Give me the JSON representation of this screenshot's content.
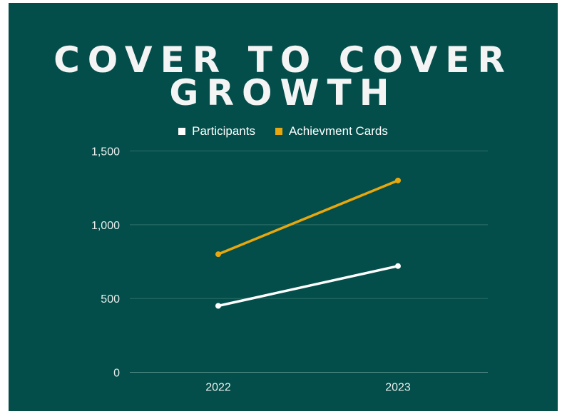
{
  "chart_data": {
    "type": "line",
    "title": "COVER TO COVER GROWTH",
    "title_lines": [
      "COVER TO COVER",
      "GROWTH"
    ],
    "categories": [
      "2022",
      "2023"
    ],
    "series": [
      {
        "name": "Participants",
        "values": [
          450,
          720
        ],
        "color": "#ffffff"
      },
      {
        "name": "Achievment Cards",
        "values": [
          800,
          1300
        ],
        "color": "#e8a70c"
      }
    ],
    "ylim": [
      0,
      1500
    ],
    "y_ticks": [
      0,
      500,
      1000,
      1500
    ],
    "y_tick_labels": [
      "0",
      "500",
      "1,000",
      "1,500"
    ],
    "grid": true,
    "legend_position": "top-center",
    "xlabel": "",
    "ylabel": ""
  },
  "colors": {
    "background": "#034e4a",
    "gridline": "#2e6e69",
    "text": "#ffffff"
  }
}
